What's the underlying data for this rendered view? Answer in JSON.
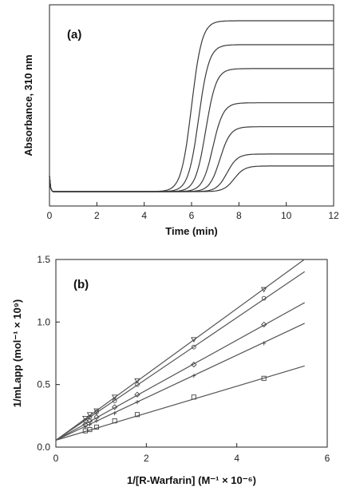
{
  "chart_data": [
    {
      "type": "line",
      "panel_label": "(a)",
      "xlabel": "Time (min)",
      "ylabel": "Absorbance, 310 nm",
      "xlim": [
        0,
        12
      ],
      "x_ticks": [
        "0",
        "2",
        "4",
        "6",
        "8",
        "10",
        "12"
      ],
      "y_ticks_shown": false,
      "grid": false,
      "baseline": 0.0,
      "series": [
        {
          "midpoint_min": 6.0,
          "plateau": 1.0
        },
        {
          "midpoint_min": 6.3,
          "plateau": 0.86
        },
        {
          "midpoint_min": 6.6,
          "plateau": 0.72
        },
        {
          "midpoint_min": 6.9,
          "plateau": 0.52
        },
        {
          "midpoint_min": 7.2,
          "plateau": 0.38
        },
        {
          "midpoint_min": 7.5,
          "plateau": 0.22
        },
        {
          "midpoint_min": 7.8,
          "plateau": 0.15
        }
      ]
    },
    {
      "type": "scatter",
      "panel_label": "(b)",
      "xlabel": "1/[R-Warfarin] (M⁻¹ × 10⁻⁶)",
      "ylabel": "1/mLapp (mol⁻¹ × 10⁹)",
      "xlim": [
        0,
        6
      ],
      "ylim": [
        0,
        1.5
      ],
      "x_ticks": [
        "0",
        "2",
        "4",
        "6"
      ],
      "y_ticks": [
        "0.0",
        "0.5",
        "1.0",
        "1.5"
      ],
      "grid": false,
      "x": [
        0.65,
        0.75,
        0.9,
        1.3,
        1.8,
        3.05,
        4.6
      ],
      "series": [
        {
          "marker": "triangle-down",
          "intercept": 0.055,
          "slope": 0.263,
          "fit_x_max": 5.5,
          "values": [
            0.23,
            0.26,
            0.29,
            0.4,
            0.53,
            0.86,
            1.26
          ]
        },
        {
          "marker": "circle",
          "intercept": 0.055,
          "slope": 0.245,
          "fit_x_max": 5.5,
          "values": [
            0.21,
            0.24,
            0.28,
            0.37,
            0.5,
            0.8,
            1.19
          ]
        },
        {
          "marker": "diamond",
          "intercept": 0.055,
          "slope": 0.2,
          "fit_x_max": 5.5,
          "values": [
            0.18,
            0.21,
            0.24,
            0.32,
            0.42,
            0.66,
            0.98
          ]
        },
        {
          "marker": "plus",
          "intercept": 0.055,
          "slope": 0.17,
          "fit_x_max": 5.5,
          "values": [
            0.16,
            0.18,
            0.21,
            0.27,
            0.36,
            0.57,
            0.83
          ]
        },
        {
          "marker": "square",
          "intercept": 0.055,
          "slope": 0.108,
          "fit_x_max": 5.5,
          "values": [
            0.13,
            0.14,
            0.16,
            0.21,
            0.26,
            0.4,
            0.55
          ]
        }
      ]
    }
  ]
}
